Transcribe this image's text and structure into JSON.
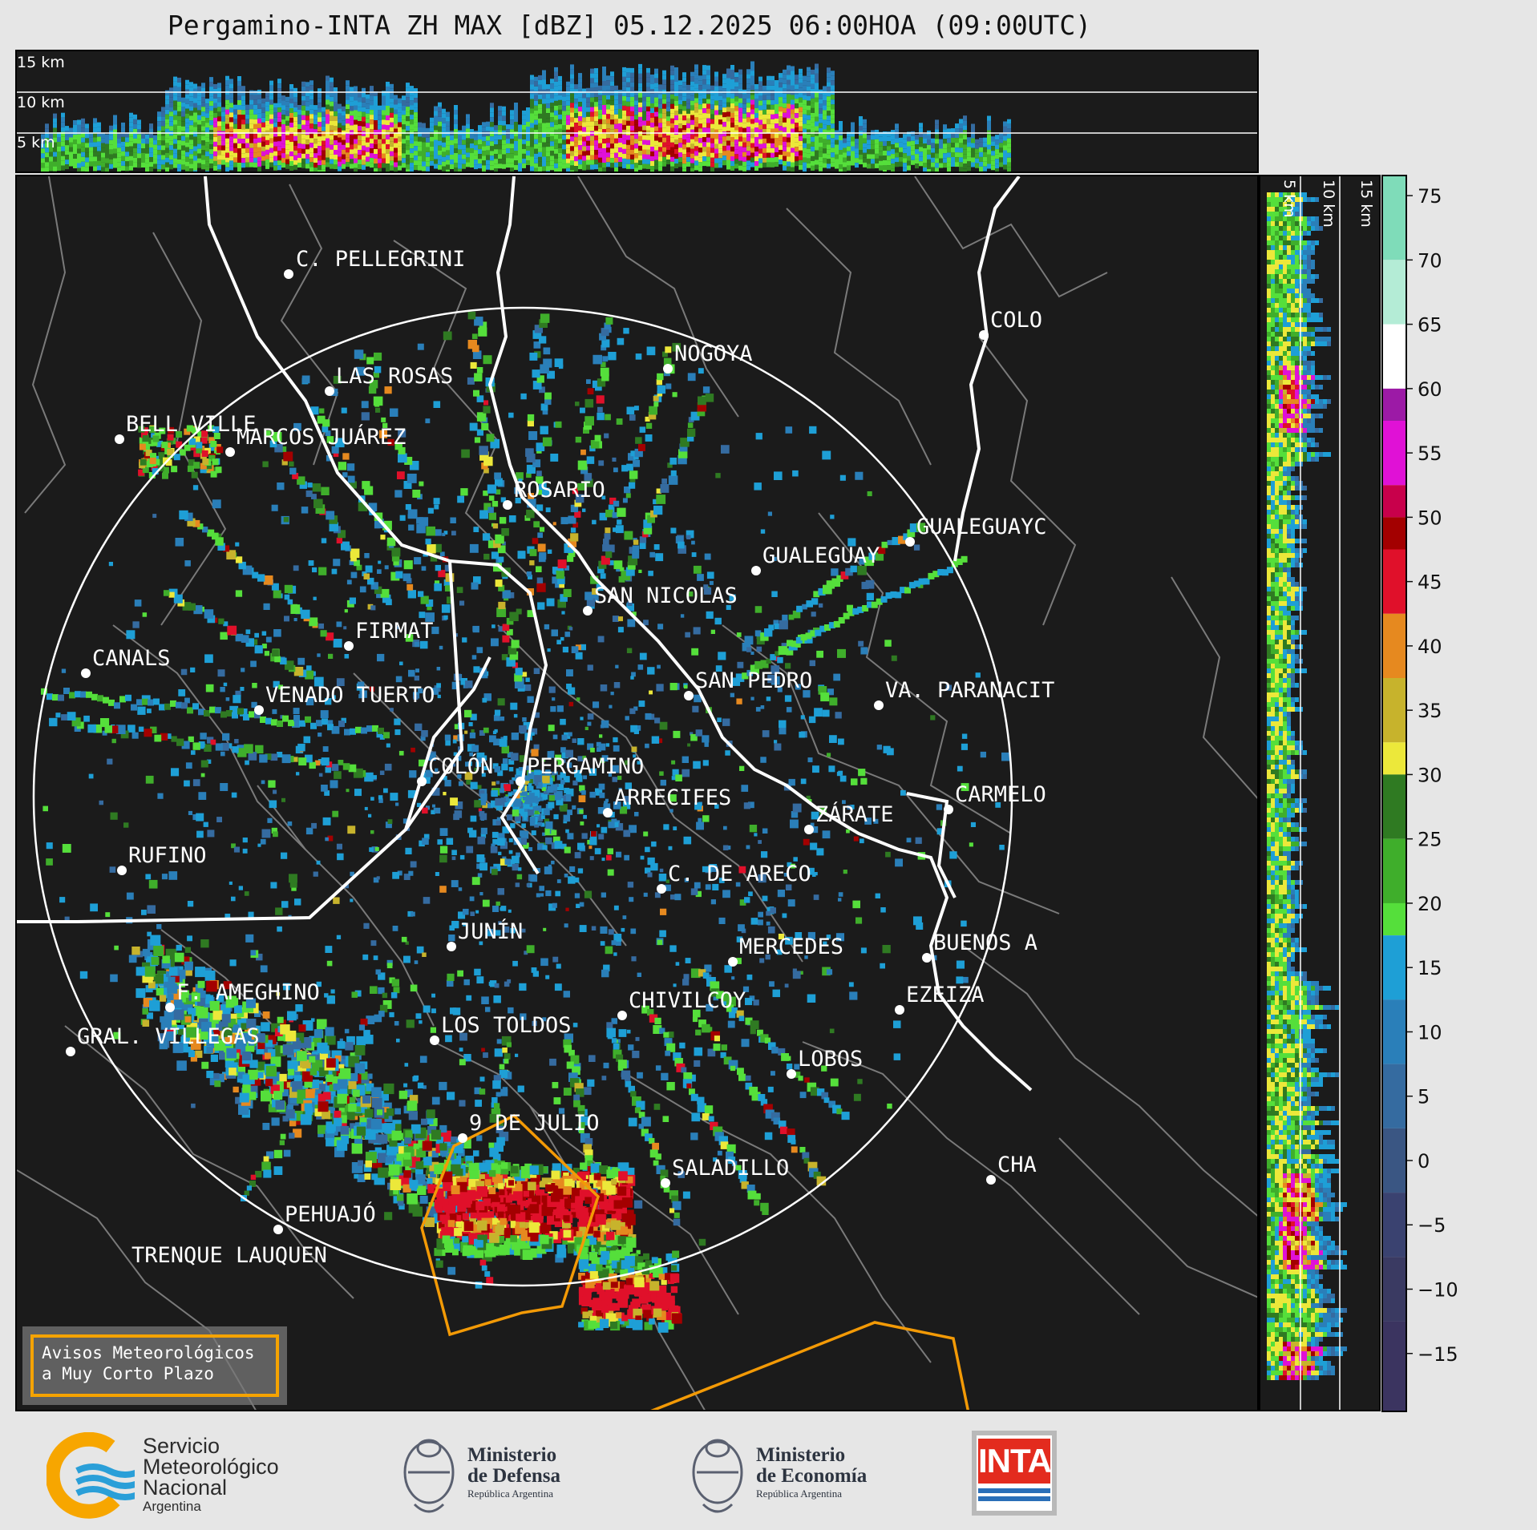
{
  "title": "Pergamino-INTA ZH MAX [dBZ] 05.12.2025 06:00HOA (09:00UTC)",
  "top_panel": {
    "altitude_labels": [
      "15 km",
      "10 km",
      "5 km"
    ]
  },
  "right_panel": {
    "altitude_labels": [
      "5 km",
      "10 km",
      "15 km"
    ]
  },
  "colorbar": {
    "ticks": [
      "75",
      "70",
      "65",
      "60",
      "55",
      "50",
      "45",
      "40",
      "35",
      "30",
      "25",
      "20",
      "15",
      "10",
      "5",
      "0",
      "−5",
      "−10",
      "−15"
    ],
    "colors": {
      "c70": "#7fdcb9",
      "c65": "#b4ecd6",
      "c60": "#ffffff",
      "c55": "#9c1aa6",
      "c52": "#e011d6",
      "c50": "#c8004b",
      "c47": "#a30000",
      "c45": "#e0102a",
      "c40": "#e6891f",
      "c37": "#c7b32c",
      "c32": "#ece83a",
      "c30": "#2f7a22",
      "c25": "#3fae2b",
      "c20": "#55df3b",
      "c15": "#1e9fd6",
      "c10": "#2a7fb9",
      "c5": "#356ba0",
      "c0": "#3a5683",
      "cm5": "#3a4270",
      "cm10": "#3a3a62",
      "cm15": "#3b3460"
    }
  },
  "cities": [
    {
      "name": "C. PELLEGRINI"
    },
    {
      "name": "LAS ROSAS"
    },
    {
      "name": "NOGOYA"
    },
    {
      "name": "BELL VILLE"
    },
    {
      "name": "MARCOS JUÁREZ"
    },
    {
      "name": "COLO"
    },
    {
      "name": "ROSARIO"
    },
    {
      "name": "GUALEGUAYC"
    },
    {
      "name": "GUALEGUAY"
    },
    {
      "name": "SAN NICOLAS"
    },
    {
      "name": "FIRMAT"
    },
    {
      "name": "CANALS"
    },
    {
      "name": "SAN PEDRO"
    },
    {
      "name": "VENADO TUERTO"
    },
    {
      "name": "VA. PARANACIT"
    },
    {
      "name": "COLÓN"
    },
    {
      "name": "PERGAMINO"
    },
    {
      "name": "CARMELO"
    },
    {
      "name": "ARRECIFES"
    },
    {
      "name": "ZÁRATE"
    },
    {
      "name": "RUFINO"
    },
    {
      "name": "C. DE ARECO"
    },
    {
      "name": "JUNÍN"
    },
    {
      "name": "MERCEDES"
    },
    {
      "name": "BUENOS A"
    },
    {
      "name": "F. AMEGHINO"
    },
    {
      "name": "EZEIZA"
    },
    {
      "name": "CHIVILCOY"
    },
    {
      "name": "GRAL. VILLEGAS"
    },
    {
      "name": "LOS TOLDOS"
    },
    {
      "name": "LOBOS"
    },
    {
      "name": "9 DE JULIO"
    },
    {
      "name": "CHA"
    },
    {
      "name": "SALADILLO"
    },
    {
      "name": "PEHUAJÓ"
    },
    {
      "name": "TRENQUE LAUQUEN"
    }
  ],
  "avisos": {
    "line1": "Avisos Meteorológicos",
    "line2": "a Muy Corto Plazo"
  },
  "logos": {
    "smn": {
      "line1": "Servicio",
      "line2": "Meteorológico",
      "line3": "Nacional",
      "line4": "Argentina"
    },
    "defensa": {
      "line1": "Ministerio",
      "line2": "de Defensa",
      "line3": "República Argentina"
    },
    "economia": {
      "line1": "Ministerio",
      "line2": "de Economía",
      "line3": "República Argentina"
    },
    "inta": {
      "text": "INTA"
    }
  }
}
